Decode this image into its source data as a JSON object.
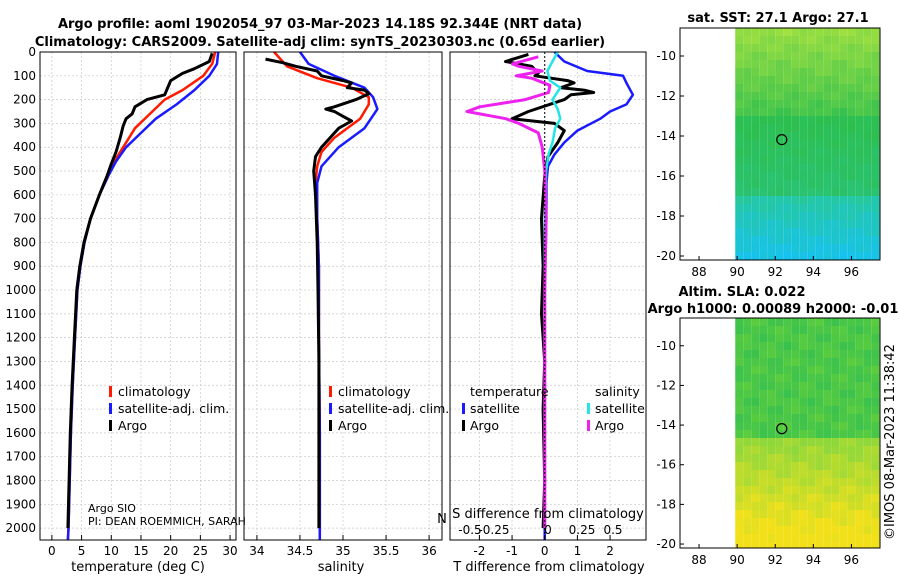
{
  "title_line1": "Argo profile: aoml 1902054_97 03-Mar-2023 14.18S 92.344E (NRT data)",
  "title_line2": "Climatology: CARS2009. Satellite-adj clim: synTS_20230303.nc (0.65d earlier)",
  "colors": {
    "climatology": "#ff1a00",
    "satellite": "#1a1aff",
    "argo": "#000000",
    "sal_satellite": "#22e5e5",
    "sal_argo": "#ee22ee",
    "map_low": "#16c2f0",
    "map_mid": "#2dbf4e",
    "map_high": "#f2e11a"
  },
  "depth_ticks": [
    "0",
    "100",
    "200",
    "300",
    "400",
    "500",
    "600",
    "700",
    "800",
    "900",
    "1000",
    "1100",
    "1200",
    "1300",
    "1400",
    "1500",
    "1600",
    "1700",
    "1800",
    "1900",
    "2000"
  ],
  "panel_temp": {
    "xlabel": "temperature (deg C)",
    "xticks": [
      "0",
      "5",
      "10",
      "15",
      "20",
      "25",
      "30"
    ],
    "legend": [
      "climatology",
      "satellite-adj. clim.",
      "Argo"
    ],
    "credit_line1": "Argo SIO",
    "credit_line2": "PI: DEAN ROEMMICH, SARAH"
  },
  "panel_sal": {
    "xlabel": "salinity",
    "xticks": [
      "34",
      "34.5",
      "35",
      "35.5",
      "36"
    ],
    "legend": [
      "climatology",
      "satellite-adj. clim.",
      "Argo"
    ]
  },
  "panel_diff": {
    "xlabel": "T difference from climatology",
    "top_axis_label": "S difference from climatology",
    "top_axis_prefix": "N",
    "xticks": [
      "-2",
      "-1",
      "0",
      "1",
      "2"
    ],
    "top_ticks": [
      "-0.5",
      "-0.25",
      "0",
      "0.25",
      "0.5"
    ],
    "legend_head_temp": "temperature",
    "legend_head_sal": "salinity",
    "legend_temp": [
      "satellite",
      "Argo"
    ],
    "legend_sal": [
      "satellite",
      "Argo"
    ]
  },
  "map_sst": {
    "title": "sat. SST: 27.1 Argo: 27.1",
    "yticks": [
      "-10",
      "-12",
      "-14",
      "-16",
      "-18",
      "-20"
    ],
    "xticks": [
      "88",
      "90",
      "92",
      "94",
      "96"
    ]
  },
  "map_sla": {
    "title_line1": "Altim. SLA: 0.022",
    "title_line2": "Argo h1000: 0.00089 h2000: -0.01",
    "yticks": [
      "-10",
      "-12",
      "-14",
      "-16",
      "-18",
      "-20"
    ],
    "xticks": [
      "88",
      "90",
      "92",
      "94",
      "96"
    ]
  },
  "watermark": "©IMOS 08-Mar-2023 11:38:42",
  "chart_data": [
    {
      "type": "line",
      "name": "temperature profile",
      "xlabel": "temperature (deg C)",
      "ylabel": "depth",
      "xlim": [
        -2,
        31
      ],
      "ylim": [
        2050,
        0
      ],
      "series": [
        {
          "name": "climatology",
          "points": [
            [
              27.5,
              0
            ],
            [
              27,
              50
            ],
            [
              25.5,
              100
            ],
            [
              22,
              160
            ],
            [
              19,
              200
            ],
            [
              16.5,
              260
            ],
            [
              14,
              320
            ],
            [
              12,
              400
            ],
            [
              10.5,
              460
            ],
            [
              9.5,
              520
            ],
            [
              8,
              600
            ],
            [
              6.5,
              700
            ],
            [
              5.5,
              800
            ],
            [
              4.8,
              900
            ],
            [
              4.3,
              1000
            ],
            [
              3.9,
              1200
            ],
            [
              3.5,
              1400
            ],
            [
              3.2,
              1600
            ],
            [
              3,
              1800
            ],
            [
              2.8,
              2000
            ],
            [
              2.7,
              2050
            ]
          ]
        },
        {
          "name": "satellite-adj. clim.",
          "points": [
            [
              28,
              0
            ],
            [
              27.8,
              50
            ],
            [
              26.5,
              100
            ],
            [
              24,
              160
            ],
            [
              21,
              220
            ],
            [
              17.5,
              280
            ],
            [
              15,
              340
            ],
            [
              12.5,
              400
            ],
            [
              10.8,
              460
            ],
            [
              9.5,
              520
            ],
            [
              8,
              600
            ],
            [
              6.5,
              700
            ],
            [
              5.5,
              800
            ],
            [
              4.8,
              900
            ],
            [
              4.3,
              1000
            ],
            [
              3.9,
              1200
            ],
            [
              3.5,
              1400
            ],
            [
              3.2,
              1600
            ],
            [
              3,
              1800
            ],
            [
              2.8,
              2000
            ],
            [
              2.7,
              2050
            ]
          ]
        },
        {
          "name": "Argo",
          "points": [
            [
              27,
              5
            ],
            [
              26.5,
              40
            ],
            [
              24,
              70
            ],
            [
              22,
              90
            ],
            [
              20,
              120
            ],
            [
              19.5,
              150
            ],
            [
              19,
              180
            ],
            [
              16,
              200
            ],
            [
              14,
              230
            ],
            [
              13.5,
              260
            ],
            [
              12.5,
              280
            ],
            [
              12,
              310
            ],
            [
              11.5,
              360
            ],
            [
              10.8,
              420
            ],
            [
              10,
              470
            ],
            [
              9.3,
              520
            ],
            [
              8,
              600
            ],
            [
              6.5,
              700
            ],
            [
              5.4,
              800
            ],
            [
              4.7,
              900
            ],
            [
              4.2,
              1000
            ],
            [
              3.8,
              1200
            ],
            [
              3.4,
              1400
            ],
            [
              3.1,
              1600
            ],
            [
              2.9,
              1800
            ],
            [
              2.7,
              2000
            ]
          ]
        }
      ]
    },
    {
      "type": "line",
      "name": "salinity profile",
      "xlabel": "salinity",
      "ylabel": "depth",
      "xlim": [
        33.85,
        36.15
      ],
      "ylim": [
        2050,
        0
      ],
      "series": [
        {
          "name": "climatology",
          "points": [
            [
              34.2,
              0
            ],
            [
              34.35,
              60
            ],
            [
              34.7,
              110
            ],
            [
              35.1,
              150
            ],
            [
              35.3,
              190
            ],
            [
              35.3,
              220
            ],
            [
              35.2,
              280
            ],
            [
              34.9,
              360
            ],
            [
              34.75,
              420
            ],
            [
              34.7,
              480
            ],
            [
              34.68,
              550
            ],
            [
              34.7,
              700
            ],
            [
              34.72,
              900
            ],
            [
              34.72,
              1200
            ],
            [
              34.73,
              1600
            ],
            [
              34.73,
              2000
            ],
            [
              34.73,
              2050
            ]
          ]
        },
        {
          "name": "satellite-adj. clim.",
          "points": [
            [
              34.5,
              0
            ],
            [
              34.6,
              50
            ],
            [
              34.9,
              100
            ],
            [
              35.25,
              150
            ],
            [
              35.35,
              190
            ],
            [
              35.4,
              240
            ],
            [
              35.25,
              320
            ],
            [
              34.95,
              400
            ],
            [
              34.75,
              480
            ],
            [
              34.7,
              550
            ],
            [
              34.7,
              700
            ],
            [
              34.72,
              900
            ],
            [
              34.72,
              1200
            ],
            [
              34.73,
              1600
            ],
            [
              34.73,
              2000
            ],
            [
              34.73,
              2050
            ]
          ]
        },
        {
          "name": "Argo",
          "points": [
            [
              34.1,
              30
            ],
            [
              34.3,
              45
            ],
            [
              34.45,
              60
            ],
            [
              34.7,
              80
            ],
            [
              34.75,
              100
            ],
            [
              35.0,
              120
            ],
            [
              35.1,
              130
            ],
            [
              35.05,
              150
            ],
            [
              35.25,
              160
            ],
            [
              35.3,
              175
            ],
            [
              35.15,
              200
            ],
            [
              34.9,
              230
            ],
            [
              34.8,
              240
            ],
            [
              34.9,
              250
            ],
            [
              35.0,
              270
            ],
            [
              35.1,
              290
            ],
            [
              34.95,
              320
            ],
            [
              34.85,
              360
            ],
            [
              34.75,
              400
            ],
            [
              34.68,
              440
            ],
            [
              34.66,
              500
            ],
            [
              34.68,
              600
            ],
            [
              34.7,
              800
            ],
            [
              34.71,
              1000
            ],
            [
              34.72,
              1300
            ],
            [
              34.72,
              1600
            ],
            [
              34.72,
              2000
            ]
          ]
        }
      ]
    },
    {
      "type": "line",
      "name": "difference from climatology",
      "xlabel": "T difference from climatology",
      "x2label": "S difference from climatology",
      "xlim": [
        -2.9,
        3.1
      ],
      "x2lim": [
        -0.73,
        0.78
      ],
      "ylim": [
        2050,
        0
      ],
      "series": [
        {
          "name": "temperature satellite",
          "axis": "T",
          "points": [
            [
              0.3,
              0
            ],
            [
              0.6,
              40
            ],
            [
              1.3,
              80
            ],
            [
              2.4,
              100
            ],
            [
              2.5,
              130
            ],
            [
              2.7,
              180
            ],
            [
              2.5,
              220
            ],
            [
              2.0,
              250
            ],
            [
              1.7,
              280
            ],
            [
              1.0,
              330
            ],
            [
              0.6,
              380
            ],
            [
              0.3,
              430
            ],
            [
              0.1,
              480
            ],
            [
              0.05,
              550
            ],
            [
              0.05,
              700
            ],
            [
              0,
              1000
            ],
            [
              0,
              1500
            ],
            [
              0,
              2000
            ],
            [
              0,
              2050
            ]
          ]
        },
        {
          "name": "temperature Argo",
          "axis": "T",
          "points": [
            [
              -0.5,
              10
            ],
            [
              -1.2,
              40
            ],
            [
              -0.4,
              60
            ],
            [
              -0.2,
              90
            ],
            [
              -0.3,
              100
            ],
            [
              0.7,
              120
            ],
            [
              0.9,
              130
            ],
            [
              0.5,
              150
            ],
            [
              1.2,
              160
            ],
            [
              1.5,
              170
            ],
            [
              0.8,
              180
            ],
            [
              0.6,
              200
            ],
            [
              -0.5,
              250
            ],
            [
              -1.0,
              280
            ],
            [
              0.3,
              300
            ],
            [
              0.6,
              330
            ],
            [
              0.4,
              380
            ],
            [
              0.1,
              440
            ],
            [
              0,
              520
            ],
            [
              -0.1,
              700
            ],
            [
              -0.05,
              900
            ],
            [
              -0.1,
              1100
            ],
            [
              0,
              1300
            ],
            [
              -0.05,
              1500
            ],
            [
              0,
              1800
            ],
            [
              -0.05,
              2000
            ]
          ]
        },
        {
          "name": "salinity satellite",
          "axis": "S",
          "points": [
            [
              0.1,
              0
            ],
            [
              0.06,
              40
            ],
            [
              0.02,
              80
            ],
            [
              0.04,
              120
            ],
            [
              0.12,
              150
            ],
            [
              0.06,
              200
            ],
            [
              0.1,
              240
            ],
            [
              0.12,
              280
            ],
            [
              0.08,
              320
            ],
            [
              0.06,
              380
            ],
            [
              0.03,
              430
            ],
            [
              0.01,
              500
            ],
            [
              0,
              700
            ],
            [
              0,
              1000
            ],
            [
              0,
              1500
            ],
            [
              0,
              2000
            ]
          ]
        },
        {
          "name": "salinity Argo",
          "axis": "S",
          "points": [
            [
              -0.05,
              20
            ],
            [
              -0.25,
              50
            ],
            [
              -0.2,
              60
            ],
            [
              -0.02,
              80
            ],
            [
              -0.22,
              100
            ],
            [
              -0.1,
              110
            ],
            [
              0.04,
              140
            ],
            [
              0.03,
              170
            ],
            [
              -0.15,
              200
            ],
            [
              -0.5,
              230
            ],
            [
              -0.6,
              250
            ],
            [
              -0.3,
              280
            ],
            [
              -0.2,
              300
            ],
            [
              -0.05,
              340
            ],
            [
              -0.02,
              400
            ],
            [
              0,
              500
            ],
            [
              0.01,
              700
            ],
            [
              0,
              1000
            ],
            [
              0,
              1500
            ],
            [
              0,
              2000
            ]
          ]
        }
      ]
    },
    {
      "type": "heatmap",
      "name": "satellite SST map",
      "title": "sat. SST: 27.1 Argo: 27.1",
      "x_range": [
        87,
        97.5
      ],
      "y_range": [
        -20.2,
        -8.6
      ],
      "xticks": [
        88,
        90,
        92,
        94,
        96
      ],
      "yticks": [
        -10,
        -12,
        -14,
        -16,
        -18,
        -20
      ],
      "data_extent_x": [
        89.9,
        97.5
      ],
      "argo_position": [
        92.344,
        -14.18
      ],
      "pattern": "yellow-green north, green center, cyan-blue south"
    },
    {
      "type": "heatmap",
      "name": "sea level anomaly map",
      "title": "Altim. SLA: 0.022 / Argo h1000: 0.00089 h2000: -0.01",
      "x_range": [
        87,
        97.5
      ],
      "y_range": [
        -20.2,
        -8.6
      ],
      "xticks": [
        88,
        90,
        92,
        94,
        96
      ],
      "yticks": [
        -10,
        -12,
        -14,
        -16,
        -18,
        -20
      ],
      "data_extent_x": [
        89.9,
        97.5
      ],
      "argo_position": [
        92.344,
        -14.18
      ],
      "pattern": "green north, yellow south"
    }
  ]
}
